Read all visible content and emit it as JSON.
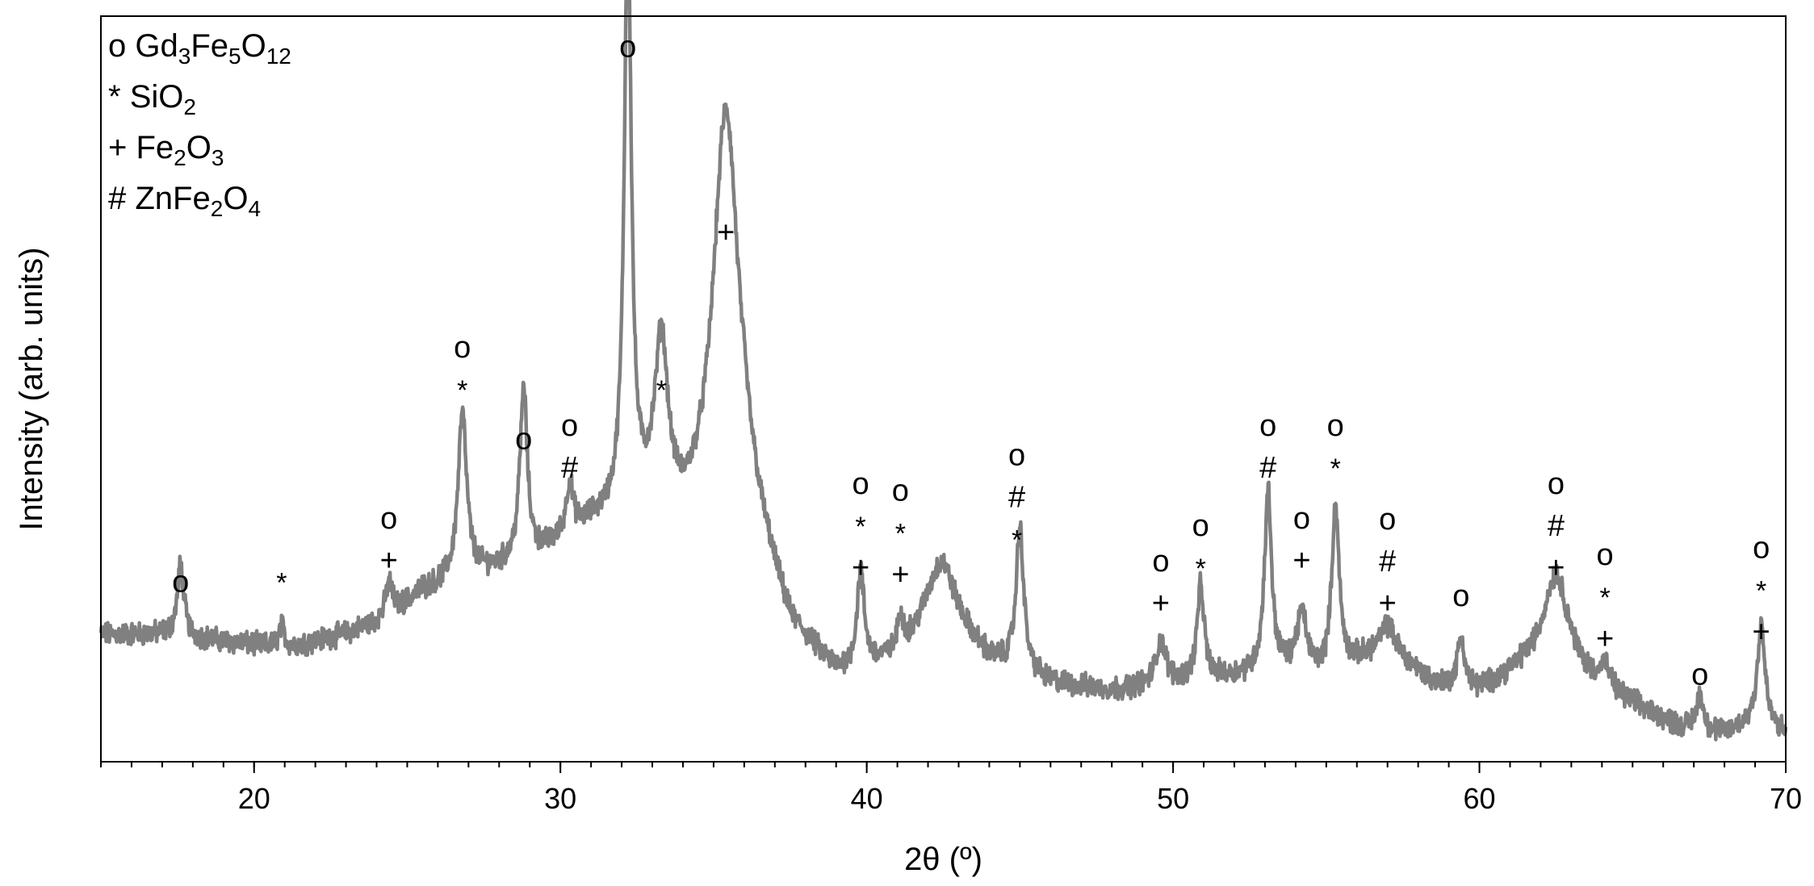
{
  "chart_data": {
    "type": "line",
    "xlabel": "2θ (º)",
    "ylabel": "Intensity (arb. units)",
    "xlim": [
      15,
      70
    ],
    "ylim": [
      0,
      100
    ],
    "x_ticks": [
      20,
      30,
      40,
      50,
      60,
      70
    ],
    "x_minor_step": 1,
    "y_ticks_shown": false,
    "series_color": "#808080",
    "legend_position": "top-left",
    "legend": [
      {
        "symbol": "o",
        "name": "Gd3Fe5O12",
        "parts": [
          [
            "Gd",
            ""
          ],
          [
            "3",
            "sub"
          ],
          [
            "Fe",
            ""
          ],
          [
            "5",
            "sub"
          ],
          [
            "O",
            ""
          ],
          [
            "12",
            "sub"
          ]
        ]
      },
      {
        "symbol": "*",
        "name": "SiO2",
        "parts": [
          [
            "SiO",
            ""
          ],
          [
            "2",
            "sub"
          ]
        ]
      },
      {
        "symbol": "+",
        "name": "Fe2O3",
        "parts": [
          [
            "Fe",
            ""
          ],
          [
            "2",
            "sub"
          ],
          [
            "O",
            ""
          ],
          [
            "3",
            "sub"
          ]
        ]
      },
      {
        "symbol": "#",
        "name": "ZnFe2O4",
        "parts": [
          [
            "ZnFe",
            ""
          ],
          [
            "2",
            "sub"
          ],
          [
            "O",
            ""
          ],
          [
            "4",
            "sub"
          ]
        ]
      }
    ],
    "background": [
      [
        15,
        16
      ],
      [
        17,
        16
      ],
      [
        19,
        15
      ],
      [
        21,
        14
      ],
      [
        23,
        16
      ],
      [
        24.3,
        18
      ],
      [
        25.5,
        22
      ],
      [
        27,
        24
      ],
      [
        29,
        26
      ],
      [
        31,
        31
      ],
      [
        33,
        33
      ],
      [
        34,
        30
      ],
      [
        36,
        33
      ],
      [
        37.5,
        16
      ],
      [
        39,
        10
      ],
      [
        41,
        12
      ],
      [
        42.5,
        18
      ],
      [
        44,
        12
      ],
      [
        46,
        9
      ],
      [
        48,
        8
      ],
      [
        50,
        9
      ],
      [
        52,
        10
      ],
      [
        53.5,
        11
      ],
      [
        55,
        10
      ],
      [
        57,
        14
      ],
      [
        58.5,
        9
      ],
      [
        60,
        8
      ],
      [
        61.5,
        11
      ],
      [
        63,
        10
      ],
      [
        65,
        6
      ],
      [
        66.5,
        3
      ],
      [
        68,
        2
      ],
      [
        69,
        4
      ],
      [
        70,
        2
      ]
    ],
    "peaks": [
      {
        "x": 17.6,
        "h": 10,
        "w": 0.13
      },
      {
        "x": 20.9,
        "h": 3,
        "w": 0.12
      },
      {
        "x": 24.4,
        "h": 5,
        "w": 0.13
      },
      {
        "x": 26.8,
        "h": 23,
        "w": 0.17
      },
      {
        "x": 28.8,
        "h": 24,
        "w": 0.15
      },
      {
        "x": 30.3,
        "h": 7,
        "w": 0.14
      },
      {
        "x": 32.2,
        "h": 82,
        "w": 0.14
      },
      {
        "x": 33.3,
        "h": 23,
        "w": 0.25
      },
      {
        "x": 35.4,
        "h": 57,
        "w": 0.5
      },
      {
        "x": 39.8,
        "h": 13,
        "w": 0.14
      },
      {
        "x": 41.1,
        "h": 5,
        "w": 0.12
      },
      {
        "x": 42.4,
        "h": 8,
        "w": 0.6
      },
      {
        "x": 45.0,
        "h": 20,
        "w": 0.15
      },
      {
        "x": 49.6,
        "h": 6,
        "w": 0.2
      },
      {
        "x": 50.9,
        "h": 13,
        "w": 0.14
      },
      {
        "x": 53.1,
        "h": 25,
        "w": 0.14
      },
      {
        "x": 54.2,
        "h": 8,
        "w": 0.2
      },
      {
        "x": 55.3,
        "h": 23,
        "w": 0.15
      },
      {
        "x": 57.0,
        "h": 3,
        "w": 0.3
      },
      {
        "x": 59.4,
        "h": 7,
        "w": 0.13
      },
      {
        "x": 62.5,
        "h": 14,
        "w": 0.5
      },
      {
        "x": 64.1,
        "h": 3,
        "w": 0.2
      },
      {
        "x": 67.2,
        "h": 5,
        "w": 0.13
      },
      {
        "x": 69.2,
        "h": 14,
        "w": 0.14
      }
    ],
    "noise_amplitude": 1.3,
    "annotations": [
      {
        "x": 17.6,
        "y": 22,
        "symbols": [
          "o"
        ]
      },
      {
        "x": 20.9,
        "y": 22,
        "symbols": [
          "*"
        ]
      },
      {
        "x": 24.4,
        "y": 25,
        "symbols": [
          "o",
          "+"
        ]
      },
      {
        "x": 26.8,
        "y": 49,
        "symbols": [
          "o",
          "*"
        ]
      },
      {
        "x": 28.8,
        "y": 42,
        "symbols": [
          "o"
        ]
      },
      {
        "x": 30.3,
        "y": 38,
        "symbols": [
          "o",
          "#"
        ]
      },
      {
        "x": 32.2,
        "y": 97,
        "symbols": [
          "o"
        ]
      },
      {
        "x": 33.3,
        "y": 49,
        "symbols": [
          "*"
        ]
      },
      {
        "x": 35.4,
        "y": 71,
        "symbols": [
          "+"
        ]
      },
      {
        "x": 39.8,
        "y": 24,
        "symbols": [
          "o",
          "*",
          "+"
        ]
      },
      {
        "x": 41.1,
        "y": 23,
        "symbols": [
          "o",
          "*",
          "+"
        ]
      },
      {
        "x": 44.9,
        "y": 28,
        "symbols": [
          "o",
          "#",
          "*"
        ]
      },
      {
        "x": 49.6,
        "y": 19,
        "symbols": [
          "o",
          "+"
        ]
      },
      {
        "x": 50.9,
        "y": 24,
        "symbols": [
          "o",
          "*"
        ]
      },
      {
        "x": 53.1,
        "y": 38,
        "symbols": [
          "o",
          "#"
        ]
      },
      {
        "x": 54.2,
        "y": 25,
        "symbols": [
          "o",
          "+"
        ]
      },
      {
        "x": 55.3,
        "y": 38,
        "symbols": [
          "o",
          "*"
        ]
      },
      {
        "x": 57.0,
        "y": 19,
        "symbols": [
          "o",
          "#",
          "+"
        ]
      },
      {
        "x": 59.4,
        "y": 20,
        "symbols": [
          "o"
        ]
      },
      {
        "x": 62.5,
        "y": 24,
        "symbols": [
          "o",
          "#",
          "+"
        ]
      },
      {
        "x": 64.1,
        "y": 14,
        "symbols": [
          "o",
          "*",
          "+"
        ]
      },
      {
        "x": 67.2,
        "y": 9,
        "symbols": [
          "o"
        ]
      },
      {
        "x": 69.2,
        "y": 15,
        "symbols": [
          "o",
          "*",
          "+"
        ]
      }
    ]
  }
}
